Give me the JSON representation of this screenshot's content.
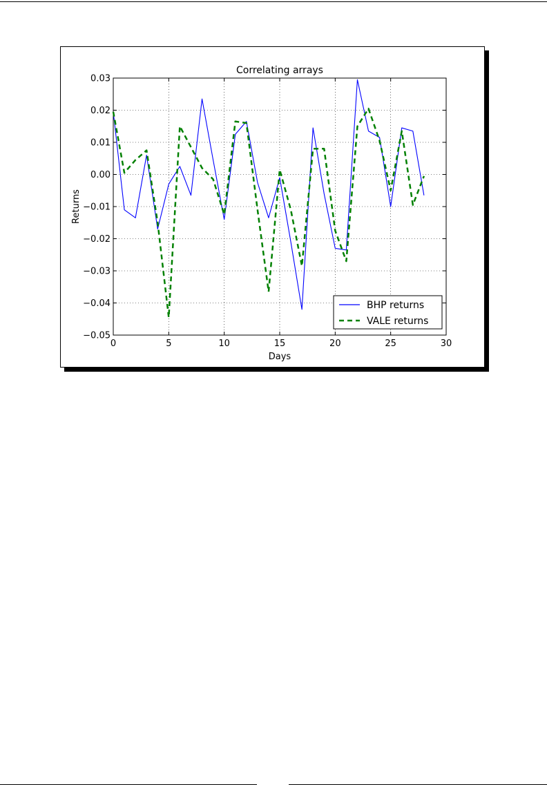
{
  "chart_data": {
    "type": "line",
    "title": "Correlating arrays",
    "xlabel": "Days",
    "ylabel": "Returns",
    "xlim": [
      0,
      30
    ],
    "ylim": [
      -0.05,
      0.03
    ],
    "xticks": [
      0,
      5,
      10,
      15,
      20,
      25,
      30
    ],
    "yticks": [
      -0.05,
      -0.04,
      -0.03,
      -0.02,
      -0.01,
      0.0,
      0.01,
      0.02,
      0.03
    ],
    "xtick_labels": [
      "0",
      "5",
      "10",
      "15",
      "20",
      "25",
      "30"
    ],
    "ytick_labels": [
      "−0.05",
      "−0.04",
      "−0.03",
      "−0.02",
      "−0.01",
      "0.00",
      "0.01",
      "0.02",
      "0.03"
    ],
    "grid": true,
    "legend_position": "lower-right",
    "x": [
      0,
      1,
      2,
      3,
      4,
      5,
      6,
      7,
      8,
      9,
      10,
      11,
      12,
      13,
      14,
      15,
      16,
      17,
      18,
      19,
      20,
      21,
      22,
      23,
      24,
      25,
      26,
      27,
      28
    ],
    "series": [
      {
        "name": "BHP returns",
        "color": "#0000ff",
        "style": "solid",
        "values": [
          0.0195,
          -0.011,
          -0.0135,
          0.006,
          -0.017,
          -0.003,
          0.0025,
          -0.0065,
          0.0235,
          0.0045,
          -0.014,
          0.0125,
          0.0165,
          -0.0025,
          -0.0135,
          -0.001,
          -0.021,
          -0.042,
          0.0145,
          -0.006,
          -0.023,
          -0.0235,
          0.0295,
          0.0135,
          0.0115,
          -0.01,
          0.0145,
          0.0135,
          -0.0065
        ]
      },
      {
        "name": "VALE returns",
        "color": "#008000",
        "style": "dashed",
        "values": [
          0.0195,
          0.0005,
          0.0045,
          0.0075,
          -0.015,
          -0.0445,
          0.015,
          0.0085,
          0.002,
          -0.0015,
          -0.0125,
          0.0165,
          0.016,
          -0.011,
          -0.0365,
          0.0015,
          -0.011,
          -0.0285,
          0.008,
          0.008,
          -0.0175,
          -0.027,
          0.015,
          0.0205,
          0.0105,
          -0.005,
          0.0135,
          -0.0095,
          -0.0005
        ]
      }
    ]
  }
}
